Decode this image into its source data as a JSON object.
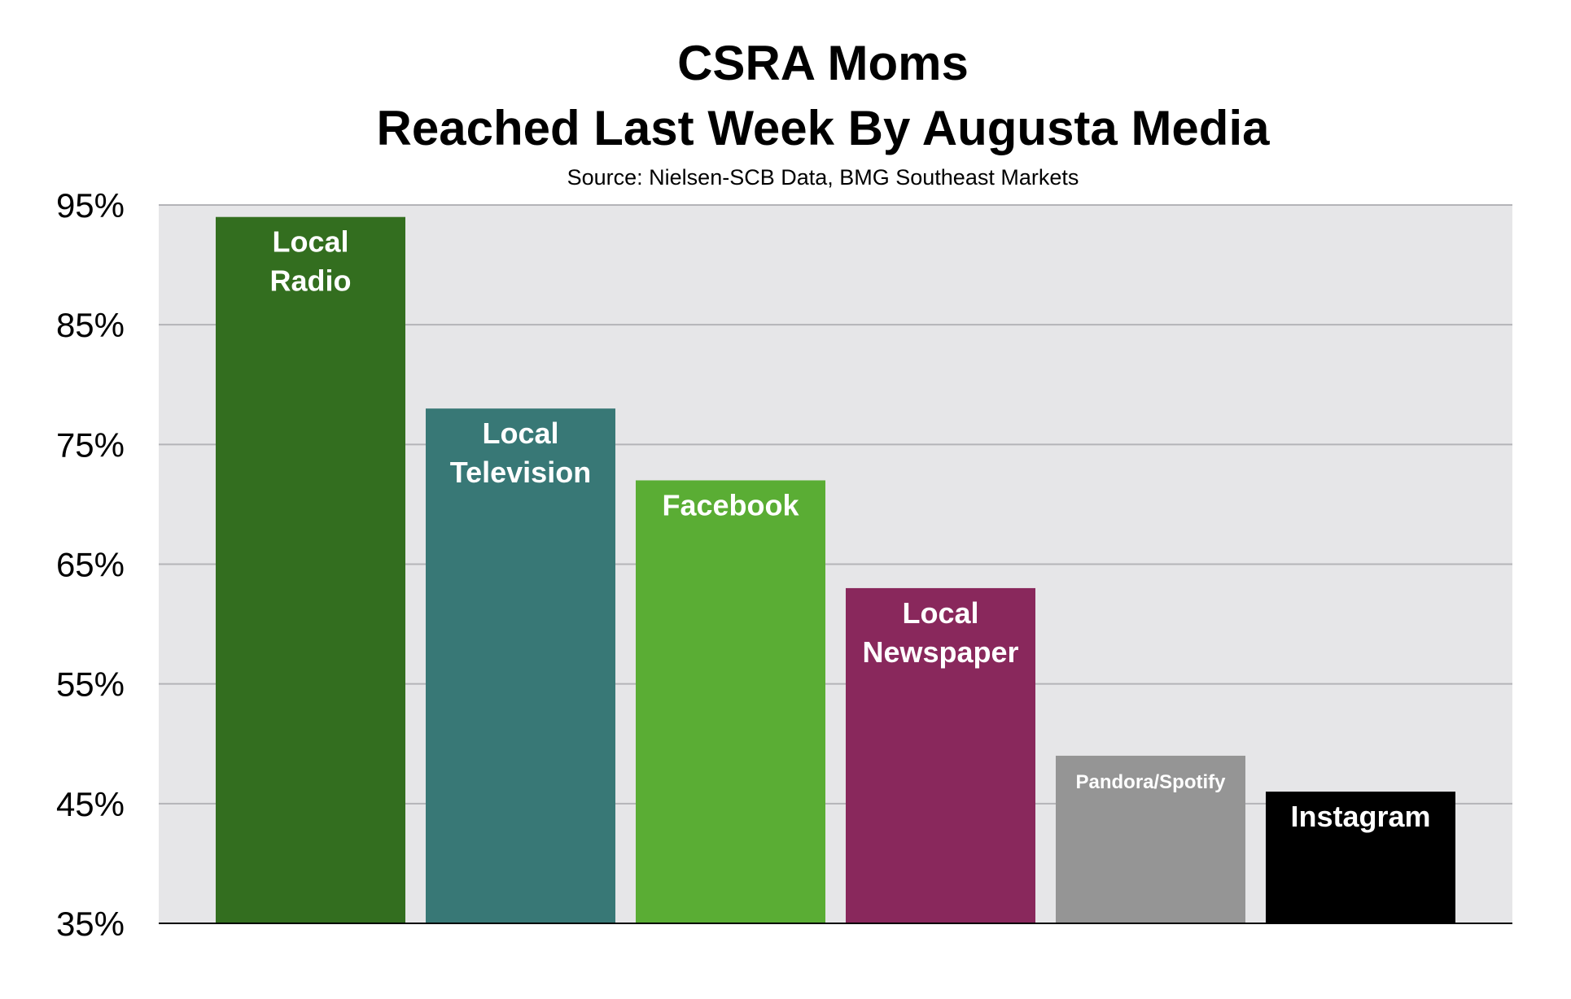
{
  "chart_data": {
    "type": "bar",
    "title_lines": [
      "CSRA Moms",
      "Reached Last Week By Augusta Media"
    ],
    "subtitle": "Source: Nielsen-SCB Data, BMG Southeast Markets",
    "xlabel": "",
    "ylabel": "",
    "ylim": [
      35,
      95
    ],
    "yticks": [
      35,
      45,
      55,
      65,
      75,
      85,
      95
    ],
    "ytick_suffix": "%",
    "grid": true,
    "legend": "none",
    "plot_background": "#e6e6e8",
    "categories": [
      {
        "label_lines": [
          "Local",
          "Radio"
        ],
        "value": 94,
        "color": "#336e1f"
      },
      {
        "label_lines": [
          "Local",
          "Television"
        ],
        "value": 78,
        "color": "#387876"
      },
      {
        "label_lines": [
          "Facebook"
        ],
        "value": 72,
        "color": "#5aad34"
      },
      {
        "label_lines": [
          "Local",
          "Newspaper"
        ],
        "value": 63,
        "color": "#89285c"
      },
      {
        "label_lines": [
          "Pandora/Spotify"
        ],
        "value": 49,
        "color": "#959595",
        "small_label": true
      },
      {
        "label_lines": [
          "Instagram"
        ],
        "value": 46,
        "color": "#000000"
      }
    ]
  }
}
